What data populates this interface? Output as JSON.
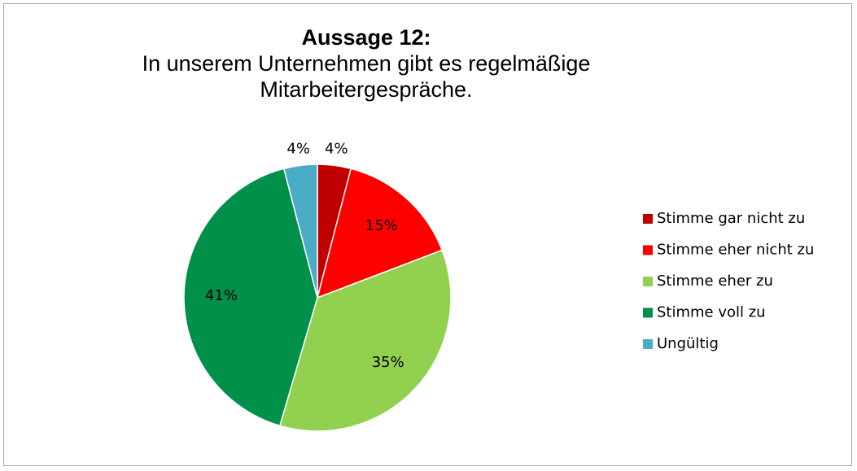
{
  "chart_data": {
    "type": "pie",
    "title": "Aussage 12:",
    "subtitle": "In unserem Unternehmen gibt es regelmäßige Mitarbeitergespräche.",
    "categories": [
      "Stimme gar nicht zu",
      "Stimme eher nicht zu",
      "Stimme eher zu",
      "Stimme voll zu",
      "Ungültig"
    ],
    "values": [
      4,
      15,
      35,
      41,
      4
    ],
    "value_labels": [
      "4%",
      "15%",
      "35%",
      "41%",
      "4%"
    ],
    "colors": [
      "#c00000",
      "#ff0000",
      "#92d050",
      "#00904a",
      "#4bacc6"
    ],
    "legend": "right"
  }
}
